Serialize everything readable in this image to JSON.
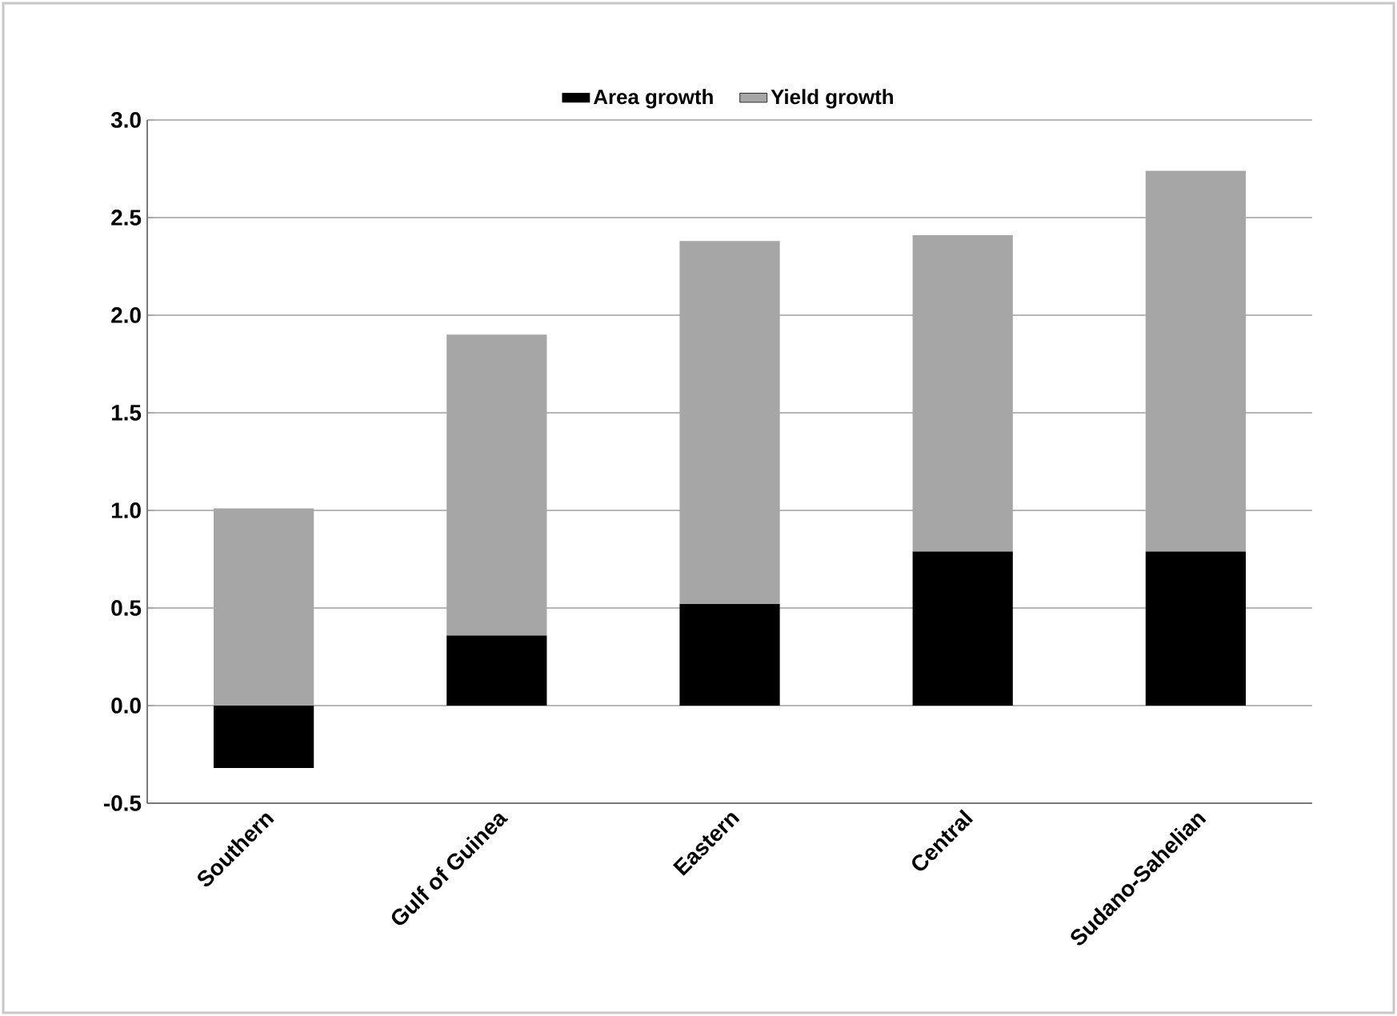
{
  "chart_data": {
    "type": "bar",
    "stacked": true,
    "categories": [
      "Southern",
      "Gulf of Guinea",
      "Eastern",
      "Central",
      "Sudano-Sahelian"
    ],
    "series": [
      {
        "name": "Area growth",
        "color": "#000000",
        "values": [
          -0.32,
          0.36,
          0.52,
          0.79,
          0.79
        ]
      },
      {
        "name": "Yield growth",
        "color": "#a6a6a6",
        "values": [
          1.01,
          1.54,
          1.86,
          1.62,
          1.95
        ]
      }
    ],
    "ylim": [
      -0.5,
      3.0
    ],
    "yticks": [
      {
        "value": -0.5,
        "label": "-0.5"
      },
      {
        "value": 0,
        "label": "0.0"
      },
      {
        "value": 0.5,
        "label": "0.5"
      },
      {
        "value": 1,
        "label": "1.0"
      },
      {
        "value": 1.5,
        "label": "1.5"
      },
      {
        "value": 2,
        "label": "2.0"
      },
      {
        "value": 2.5,
        "label": "2.5"
      },
      {
        "value": 3,
        "label": "3.0"
      }
    ],
    "grid": "y",
    "legend": "top"
  }
}
